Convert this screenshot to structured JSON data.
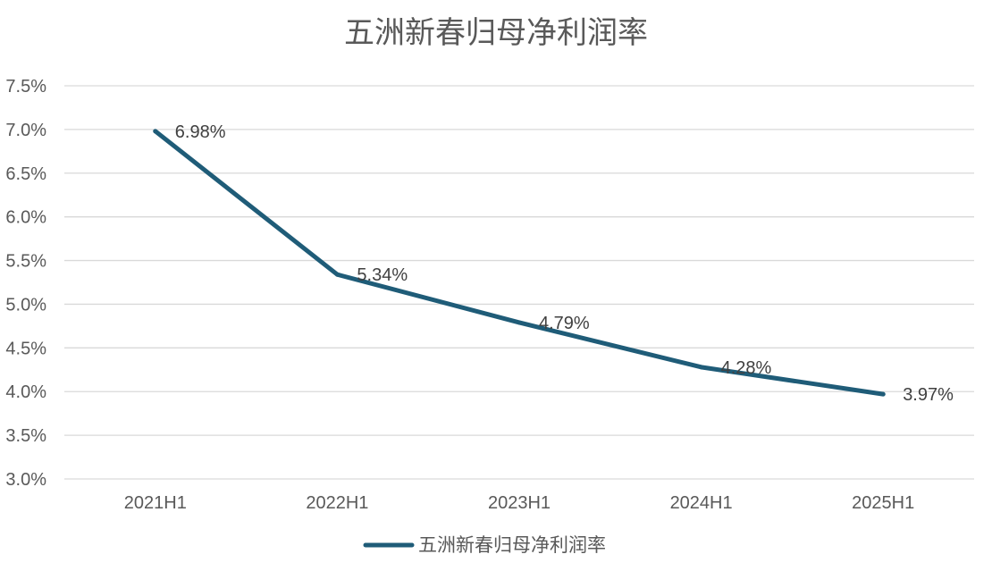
{
  "chart_data": {
    "type": "line",
    "title": "五洲新春归母净利润率",
    "categories": [
      "2021H1",
      "2022H1",
      "2023H1",
      "2024H1",
      "2025H1"
    ],
    "series": [
      {
        "name": "五洲新春归母净利润率",
        "values": [
          6.98,
          5.34,
          4.79,
          4.28,
          3.97
        ],
        "labels": [
          "6.98%",
          "5.34%",
          "4.79%",
          "4.28%",
          "3.97%"
        ],
        "color": "#1f5c78"
      }
    ],
    "ylim": [
      3.0,
      7.5
    ],
    "yticks": [
      {
        "value": 7.5,
        "label": "7.5%"
      },
      {
        "value": 7.0,
        "label": "7.0%"
      },
      {
        "value": 6.5,
        "label": "6.5%"
      },
      {
        "value": 6.0,
        "label": "6.0%"
      },
      {
        "value": 5.5,
        "label": "5.5%"
      },
      {
        "value": 5.0,
        "label": "5.0%"
      },
      {
        "value": 4.5,
        "label": "4.5%"
      },
      {
        "value": 4.0,
        "label": "4.0%"
      },
      {
        "value": 3.5,
        "label": "3.5%"
      },
      {
        "value": 3.0,
        "label": "3.0%"
      }
    ],
    "grid": true,
    "legend_position": "bottom",
    "colors": {
      "grid": "#d9d9d9",
      "text": "#595959"
    }
  }
}
